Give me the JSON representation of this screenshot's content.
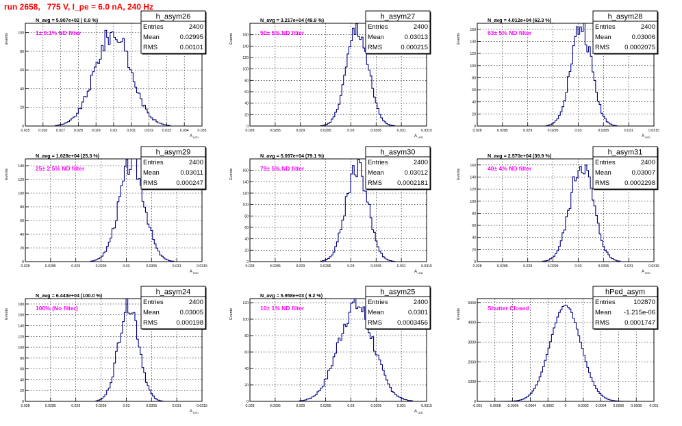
{
  "page": {
    "title": "run 2658,   775 V, I_pe = 6.0 nA, 240 Hz"
  },
  "colors": {
    "histogram": "#000080",
    "annotation": "#ff00ff",
    "title": "#ff0000",
    "grid": "#000000"
  },
  "chart_data": [
    {
      "type": "bar",
      "name": "h_asym26",
      "nav": "N_avg = 5.907e+02 ( 0.9 %)",
      "annotation": "1± 0.1% ND filter",
      "stats": {
        "entries_label": "Entries",
        "entries": "2400",
        "mean_label": "Mean",
        "mean": "0.02995",
        "rms_label": "RMS",
        "rms": "0.00101"
      },
      "xlabel": "A",
      "xlabel_sub": "LED",
      "ylabel": "Events",
      "xlim": [
        0.025,
        0.035
      ],
      "ylim": [
        0,
        110
      ],
      "xticks": [
        "0.025",
        "0.026",
        "0.027",
        "0.028",
        "0.029",
        "0.03",
        "0.031",
        "0.032",
        "0.033",
        "0.034",
        "0.035"
      ],
      "yticks": [
        0,
        20,
        40,
        60,
        80,
        100
      ],
      "mu": 0.02995,
      "sigma": 0.00101,
      "peak": 100,
      "nbins": 100
    },
    {
      "type": "bar",
      "name": "h_asym27",
      "nav": "N_avg = 3.217e+04 (49.9 %)",
      "annotation": "50± 5% ND filter",
      "stats": {
        "entries_label": "Entries",
        "entries": "2400",
        "mean_label": "Mean",
        "mean": "0.03013",
        "rms_label": "RMS",
        "rms": "0.000215"
      },
      "xlabel": "A",
      "xlabel_sub": "LED",
      "ylabel": "Events",
      "xlim": [
        0.028,
        0.0315
      ],
      "ylim": [
        0,
        180
      ],
      "xticks": [
        "0.028",
        "0.0285",
        "0.029",
        "0.0295",
        "0.03",
        "0.0305",
        "0.031",
        "0.0315"
      ],
      "yticks": [
        0,
        20,
        40,
        60,
        80,
        100,
        120,
        140,
        160
      ],
      "mu": 0.03013,
      "sigma": 0.000215,
      "peak": 170,
      "nbins": 100
    },
    {
      "type": "bar",
      "name": "h_asym28",
      "nav": "N_avg = 4.012e+04 (62.3 %)",
      "annotation": "63± 5% ND filter",
      "stats": {
        "entries_label": "Entries",
        "entries": "2400",
        "mean_label": "Mean",
        "mean": "0.03006",
        "rms_label": "RMS",
        "rms": "0.0002075"
      },
      "xlabel": "A",
      "xlabel_sub": "LED",
      "ylabel": "Events",
      "xlim": [
        0.028,
        0.0315
      ],
      "ylim": [
        0,
        170
      ],
      "xticks": [
        "0.028",
        "0.0285",
        "0.029",
        "0.0295",
        "0.03",
        "0.0305",
        "0.031",
        "0.0315"
      ],
      "yticks": [
        0,
        20,
        40,
        60,
        80,
        100,
        120,
        140,
        160
      ],
      "mu": 0.03006,
      "sigma": 0.0002075,
      "peak": 165,
      "nbins": 100
    },
    {
      "type": "bar",
      "name": "h_asym29",
      "nav": "N_avg = 1.628e+04 (25.3 %)",
      "annotation": "25± 2.5% ND filter",
      "stats": {
        "entries_label": "Entries",
        "entries": "2400",
        "mean_label": "Mean",
        "mean": "0.03011",
        "rms_label": "RMS",
        "rms": "0.000247"
      },
      "xlabel": "A",
      "xlabel_sub": "LED",
      "ylabel": "Events",
      "xlim": [
        0.028,
        0.0315
      ],
      "ylim": [
        0,
        150
      ],
      "xticks": [
        "0.028",
        "0.0285",
        "0.029",
        "0.0295",
        "0.03",
        "0.0305",
        "0.031",
        "0.0315"
      ],
      "yticks": [
        0,
        20,
        40,
        60,
        80,
        100,
        120,
        140
      ],
      "mu": 0.03011,
      "sigma": 0.000247,
      "peak": 145,
      "nbins": 100
    },
    {
      "type": "bar",
      "name": "h_asym30",
      "nav": "N_avg = 5.097e+04 (79.1 %)",
      "annotation": "79± 5% ND filter",
      "stats": {
        "entries_label": "Entries",
        "entries": "2400",
        "mean_label": "Mean",
        "mean": "0.03012",
        "rms_label": "RMS",
        "rms": "0.0002181"
      },
      "xlabel": "A",
      "xlabel_sub": "LED",
      "ylabel": "Events",
      "xlim": [
        0.028,
        0.0315
      ],
      "ylim": [
        0,
        180
      ],
      "xticks": [
        "0.028",
        "0.0285",
        "0.029",
        "0.0295",
        "0.03",
        "0.0305",
        "0.031",
        "0.0315"
      ],
      "yticks": [
        0,
        20,
        40,
        60,
        80,
        100,
        120,
        140,
        160
      ],
      "mu": 0.03012,
      "sigma": 0.0002181,
      "peak": 168,
      "nbins": 100
    },
    {
      "type": "bar",
      "name": "h_asym31",
      "nav": "N_avg = 2.570e+04 (39.9 %)",
      "annotation": "40± 4% ND filter",
      "stats": {
        "entries_label": "Entries",
        "entries": "2400",
        "mean_label": "Mean",
        "mean": "0.03007",
        "rms_label": "RMS",
        "rms": "0.0002298"
      },
      "xlabel": "A",
      "xlabel_sub": "LED",
      "ylabel": "Events",
      "xlim": [
        0.028,
        0.0315
      ],
      "ylim": [
        0,
        170
      ],
      "xticks": [
        "0.028",
        "0.0285",
        "0.029",
        "0.0295",
        "0.03",
        "0.0305",
        "0.031",
        "0.0315"
      ],
      "yticks": [
        0,
        20,
        40,
        60,
        80,
        100,
        120,
        140,
        160
      ],
      "mu": 0.03007,
      "sigma": 0.0002298,
      "peak": 163,
      "nbins": 100
    },
    {
      "type": "bar",
      "name": "h_asym24",
      "nav": "N_avg = 6.443e+04 (100.0 %)",
      "annotation": "100% (No filter)",
      "stats": {
        "entries_label": "Entries",
        "entries": "2400",
        "mean_label": "Mean",
        "mean": "0.03005",
        "rms_label": "RMS",
        "rms": "0.000198"
      },
      "xlabel": "A",
      "xlabel_sub": "LED",
      "ylabel": "Events",
      "xlim": [
        0.028,
        0.0315
      ],
      "ylim": [
        0,
        190
      ],
      "xticks": [
        "0.028",
        "0.0285",
        "0.029",
        "0.0295",
        "0.03",
        "0.0305",
        "0.031",
        "0.0315"
      ],
      "yticks": [
        0,
        20,
        40,
        60,
        80,
        100,
        120,
        140,
        160,
        180
      ],
      "mu": 0.03005,
      "sigma": 0.000198,
      "peak": 185,
      "nbins": 100
    },
    {
      "type": "bar",
      "name": "h_asym25",
      "nav": "N_avg = 5.958e+03 ( 9.2 %)",
      "annotation": "10± 1% ND filter",
      "stats": {
        "entries_label": "Entries",
        "entries": "2400",
        "mean_label": "Mean",
        "mean": "0.0301",
        "rms_label": "RMS",
        "rms": "0.0003456"
      },
      "xlabel": "A",
      "xlabel_sub": "LED",
      "ylabel": "Events",
      "xlim": [
        0.028,
        0.0315
      ],
      "ylim": [
        0,
        125
      ],
      "xticks": [
        "0.028",
        "0.0285",
        "0.029",
        "0.0295",
        "0.03",
        "0.0305",
        "0.031",
        "0.0315"
      ],
      "yticks": [
        0,
        20,
        40,
        60,
        80,
        100,
        120
      ],
      "mu": 0.0301,
      "sigma": 0.0003456,
      "peak": 118,
      "nbins": 100
    },
    {
      "type": "bar",
      "name": "hPed_asym",
      "nav": "",
      "annotation": "Shutter Closed",
      "stats": {
        "entries_label": "Entries",
        "entries": "102870",
        "mean_label": "Mean",
        "mean": "-1.215e-06",
        "rms_label": "RMS",
        "rms": "0.0001747"
      },
      "xlabel": "",
      "xlabel_sub": "",
      "ylabel": "Events",
      "xlim": [
        -0.001,
        0.001
      ],
      "ylim": [
        0,
        5200
      ],
      "xticks": [
        "-0.001",
        "-0.0008",
        "-0.0006",
        "-0.0004",
        "-0.0002",
        "0",
        "0.0002",
        "0.0004",
        "0.0006",
        "0.0008",
        "0.001"
      ],
      "yticks": [
        0,
        1000,
        2000,
        3000,
        4000,
        5000
      ],
      "mu": -1.215e-06,
      "sigma": 0.0001747,
      "peak": 4850,
      "nbins": 100
    }
  ]
}
